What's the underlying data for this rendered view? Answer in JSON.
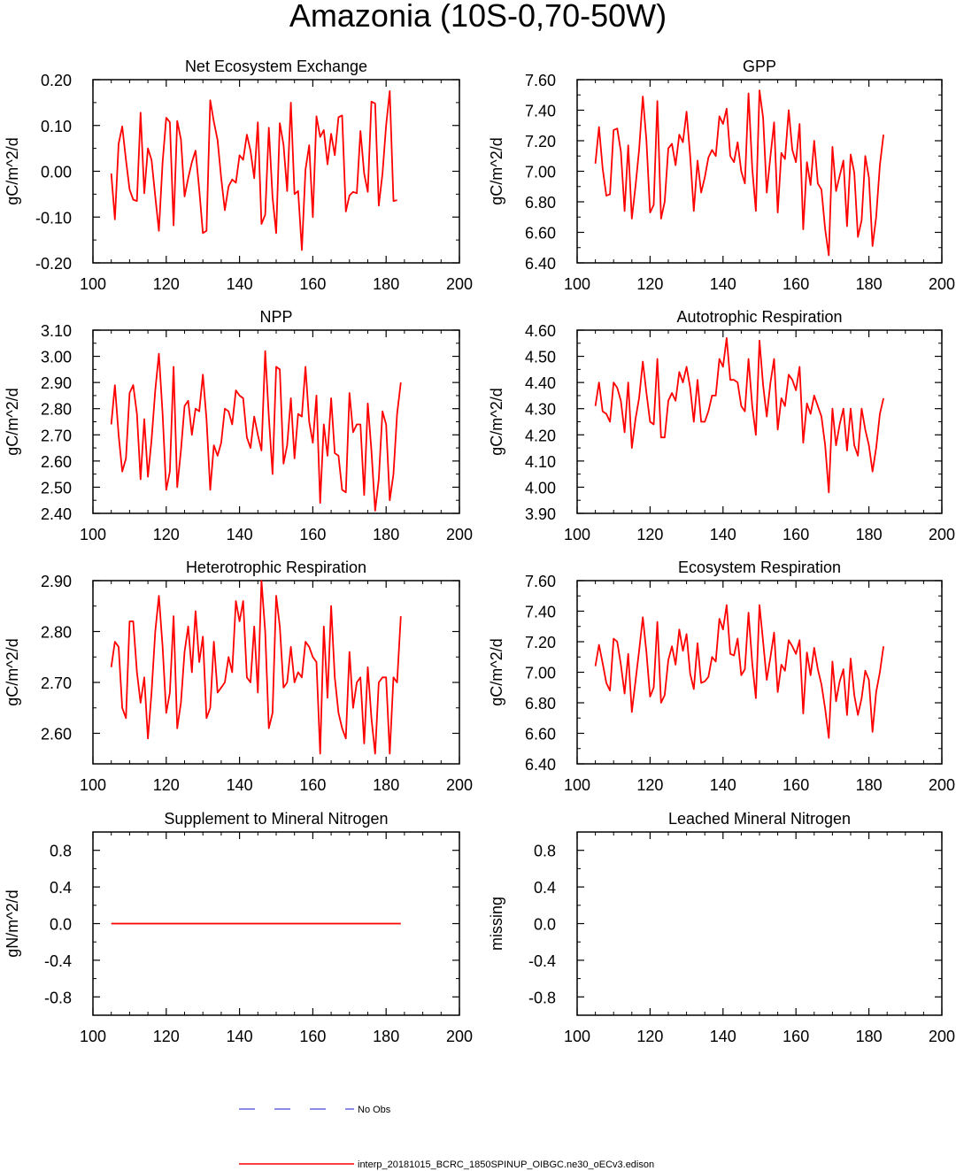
{
  "title": "Amazonia (10S-0,70-50W)",
  "colors": {
    "model": "#ff0000",
    "obs": "#6666dd",
    "axes": "#000000"
  },
  "legend": {
    "obs_label": "No Obs",
    "model_label": "interp_20181015_BCRC_1850SPINUP_OIBGC.ne30_oECv3.edison"
  },
  "chart_data": [
    {
      "id": "nee",
      "type": "line",
      "title": "Net Ecosystem Exchange",
      "ylabel": "gC/m^2/d",
      "xlim": [
        100,
        200
      ],
      "ylim": [
        -0.2,
        0.2
      ],
      "xticks": [
        100,
        120,
        140,
        160,
        180,
        200
      ],
      "xtick_labels": [
        "100",
        "120",
        "140",
        "160",
        "180",
        "200"
      ],
      "yticks": [
        -0.2,
        -0.1,
        0.0,
        0.1,
        0.2
      ],
      "ytick_labels": [
        "-0.20",
        "-0.10",
        "0.00",
        "0.10",
        "0.20"
      ],
      "x_start": 105,
      "values": [
        -0.005,
        -0.105,
        0.06,
        0.098,
        0.025,
        -0.04,
        -0.062,
        -0.065,
        0.128,
        -0.048,
        0.05,
        0.025,
        -0.055,
        -0.13,
        0.02,
        0.117,
        0.107,
        -0.118,
        0.11,
        0.07,
        -0.055,
        -0.015,
        0.02,
        0.045,
        -0.04,
        -0.135,
        -0.13,
        0.155,
        0.108,
        0.068,
        -0.015,
        -0.085,
        -0.033,
        -0.018,
        -0.025,
        0.035,
        0.025,
        0.08,
        0.045,
        -0.015,
        0.107,
        -0.115,
        -0.095,
        0.095,
        -0.057,
        -0.135,
        0.105,
        0.058,
        -0.043,
        0.15,
        -0.05,
        -0.043,
        -0.172,
        0.003,
        0.057,
        -0.1,
        0.12,
        0.075,
        0.09,
        0.015,
        0.082,
        0.035,
        0.118,
        0.122,
        -0.088,
        -0.053,
        -0.045,
        -0.048,
        0.088,
        -0.005,
        -0.045,
        0.152,
        0.148,
        -0.075,
        -0.005,
        0.1,
        0.175,
        -0.065,
        -0.063
      ]
    },
    {
      "id": "gpp",
      "type": "line",
      "title": "GPP",
      "ylabel": "gC/m^2/d",
      "xlim": [
        100,
        200
      ],
      "ylim": [
        6.4,
        7.6
      ],
      "xticks": [
        100,
        120,
        140,
        160,
        180,
        200
      ],
      "xtick_labels": [
        "100",
        "120",
        "140",
        "160",
        "180",
        "200"
      ],
      "yticks": [
        6.4,
        6.6,
        6.8,
        7.0,
        7.2,
        7.4,
        7.6
      ],
      "ytick_labels": [
        "6.40",
        "6.60",
        "6.80",
        "7.00",
        "7.20",
        "7.40",
        "7.60"
      ],
      "x_start": 105,
      "values": [
        7.05,
        7.29,
        7.02,
        6.84,
        6.85,
        7.27,
        7.28,
        7.13,
        6.74,
        7.17,
        6.69,
        6.9,
        7.14,
        7.49,
        7.2,
        6.73,
        6.78,
        7.46,
        6.69,
        6.8,
        7.15,
        7.18,
        7.04,
        7.24,
        7.19,
        7.39,
        7.1,
        6.74,
        7.07,
        6.86,
        6.96,
        7.09,
        7.14,
        7.1,
        7.36,
        7.31,
        7.41,
        7.1,
        7.06,
        7.19,
        7.0,
        6.92,
        7.51,
        7.02,
        6.74,
        7.53,
        7.35,
        6.86,
        7.1,
        7.32,
        6.73,
        7.12,
        7.08,
        7.4,
        7.14,
        7.06,
        7.31,
        6.62,
        7.06,
        6.91,
        7.2,
        6.92,
        6.88,
        6.62,
        6.45,
        7.16,
        6.87,
        6.97,
        7.07,
        6.64,
        7.11,
        6.99,
        6.57,
        6.68,
        7.1,
        6.96,
        6.51,
        6.7,
        7.04,
        7.24
      ]
    },
    {
      "id": "npp",
      "type": "line",
      "title": "NPP",
      "ylabel": "gC/m^2/d",
      "xlim": [
        100,
        200
      ],
      "ylim": [
        2.4,
        3.1
      ],
      "xticks": [
        100,
        120,
        140,
        160,
        180,
        200
      ],
      "xtick_labels": [
        "100",
        "120",
        "140",
        "160",
        "180",
        "200"
      ],
      "yticks": [
        2.4,
        2.5,
        2.6,
        2.7,
        2.8,
        2.9,
        3.0,
        3.1
      ],
      "ytick_labels": [
        "2.40",
        "2.50",
        "2.60",
        "2.70",
        "2.80",
        "2.90",
        "3.00",
        "3.10"
      ],
      "x_start": 105,
      "values": [
        2.74,
        2.89,
        2.7,
        2.56,
        2.61,
        2.86,
        2.89,
        2.78,
        2.53,
        2.76,
        2.54,
        2.68,
        2.87,
        3.01,
        2.78,
        2.49,
        2.56,
        2.96,
        2.5,
        2.64,
        2.81,
        2.83,
        2.7,
        2.8,
        2.79,
        2.93,
        2.76,
        2.49,
        2.66,
        2.62,
        2.67,
        2.8,
        2.79,
        2.74,
        2.87,
        2.85,
        2.84,
        2.69,
        2.65,
        2.77,
        2.7,
        2.64,
        3.02,
        2.77,
        2.55,
        2.96,
        2.95,
        2.59,
        2.66,
        2.84,
        2.61,
        2.78,
        2.77,
        2.96,
        2.75,
        2.67,
        2.85,
        2.44,
        2.74,
        2.62,
        2.84,
        2.63,
        2.62,
        2.49,
        2.48,
        2.86,
        2.71,
        2.74,
        2.74,
        2.47,
        2.82,
        2.64,
        2.41,
        2.53,
        2.79,
        2.74,
        2.45,
        2.55,
        2.78,
        2.9
      ]
    },
    {
      "id": "ar",
      "type": "line",
      "title": "Autotrophic Respiration",
      "ylabel": "gC/m^2/d",
      "xlim": [
        100,
        200
      ],
      "ylim": [
        3.9,
        4.6
      ],
      "xticks": [
        100,
        120,
        140,
        160,
        180,
        200
      ],
      "xtick_labels": [
        "100",
        "120",
        "140",
        "160",
        "180",
        "200"
      ],
      "yticks": [
        3.9,
        4.0,
        4.1,
        4.2,
        4.3,
        4.4,
        4.5,
        4.6
      ],
      "ytick_labels": [
        "3.90",
        "4.00",
        "4.10",
        "4.20",
        "4.30",
        "4.40",
        "4.50",
        "4.60"
      ],
      "x_start": 105,
      "values": [
        4.31,
        4.4,
        4.29,
        4.28,
        4.25,
        4.4,
        4.38,
        4.33,
        4.21,
        4.4,
        4.15,
        4.26,
        4.34,
        4.48,
        4.36,
        4.25,
        4.24,
        4.49,
        4.19,
        4.19,
        4.33,
        4.36,
        4.33,
        4.44,
        4.4,
        4.46,
        4.38,
        4.25,
        4.41,
        4.25,
        4.25,
        4.29,
        4.35,
        4.35,
        4.49,
        4.46,
        4.57,
        4.41,
        4.41,
        4.4,
        4.31,
        4.29,
        4.49,
        4.31,
        4.2,
        4.56,
        4.39,
        4.27,
        4.4,
        4.49,
        4.22,
        4.34,
        4.31,
        4.43,
        4.41,
        4.37,
        4.46,
        4.17,
        4.32,
        4.28,
        4.35,
        4.31,
        4.27,
        4.16,
        3.98,
        4.3,
        4.16,
        4.24,
        4.3,
        4.14,
        4.3,
        4.16,
        4.12,
        4.3,
        4.22,
        4.16,
        4.06,
        4.15,
        4.28,
        4.34
      ]
    },
    {
      "id": "hr",
      "type": "line",
      "title": "Heterotrophic Respiration",
      "ylabel": "gC/m^2/d",
      "xlim": [
        100,
        200
      ],
      "ylim": [
        2.54,
        2.9
      ],
      "xticks": [
        100,
        120,
        140,
        160,
        180,
        200
      ],
      "xtick_labels": [
        "100",
        "120",
        "140",
        "160",
        "180",
        "200"
      ],
      "yticks": [
        2.6,
        2.7,
        2.8,
        2.9
      ],
      "ytick_labels": [
        "2.60",
        "2.70",
        "2.80",
        "2.90"
      ],
      "x_start": 105,
      "values": [
        2.73,
        2.78,
        2.77,
        2.65,
        2.63,
        2.82,
        2.82,
        2.72,
        2.66,
        2.71,
        2.59,
        2.68,
        2.8,
        2.87,
        2.77,
        2.64,
        2.68,
        2.83,
        2.61,
        2.66,
        2.76,
        2.81,
        2.72,
        2.84,
        2.74,
        2.79,
        2.63,
        2.65,
        2.78,
        2.68,
        2.69,
        2.7,
        2.75,
        2.72,
        2.86,
        2.82,
        2.86,
        2.71,
        2.7,
        2.81,
        2.68,
        2.9,
        2.8,
        2.61,
        2.64,
        2.87,
        2.81,
        2.69,
        2.7,
        2.77,
        2.7,
        2.72,
        2.71,
        2.78,
        2.77,
        2.75,
        2.74,
        2.56,
        2.81,
        2.67,
        2.85,
        2.71,
        2.64,
        2.61,
        2.59,
        2.76,
        2.65,
        2.7,
        2.71,
        2.58,
        2.73,
        2.63,
        2.56,
        2.7,
        2.71,
        2.71,
        2.56,
        2.71,
        2.7,
        2.83
      ]
    },
    {
      "id": "er",
      "type": "line",
      "title": "Ecosystem Respiration",
      "ylabel": "gC/m^2/d",
      "xlim": [
        100,
        200
      ],
      "ylim": [
        6.4,
        7.6
      ],
      "xticks": [
        100,
        120,
        140,
        160,
        180,
        200
      ],
      "xtick_labels": [
        "100",
        "120",
        "140",
        "160",
        "180",
        "200"
      ],
      "yticks": [
        6.4,
        6.6,
        6.8,
        7.0,
        7.2,
        7.4,
        7.6
      ],
      "ytick_labels": [
        "6.40",
        "6.60",
        "6.80",
        "7.00",
        "7.20",
        "7.40",
        "7.60"
      ],
      "x_start": 105,
      "values": [
        7.04,
        7.18,
        7.06,
        6.93,
        6.88,
        7.22,
        7.2,
        7.05,
        6.86,
        7.12,
        6.74,
        6.94,
        7.14,
        7.36,
        7.13,
        6.84,
        6.9,
        7.33,
        6.8,
        6.85,
        7.08,
        7.17,
        7.05,
        7.28,
        7.14,
        7.25,
        6.99,
        6.89,
        7.19,
        6.93,
        6.94,
        6.97,
        7.1,
        7.07,
        7.35,
        7.28,
        7.44,
        7.12,
        7.11,
        7.22,
        6.98,
        7.02,
        7.39,
        7.06,
        6.83,
        7.44,
        7.2,
        6.95,
        7.1,
        7.26,
        6.87,
        7.05,
        7.01,
        7.21,
        7.17,
        7.12,
        7.21,
        6.73,
        7.13,
        6.98,
        7.16,
        7.02,
        6.92,
        6.76,
        6.57,
        7.07,
        6.81,
        6.94,
        7.02,
        6.72,
        7.09,
        6.85,
        6.72,
        6.83,
        7.01,
        6.95,
        6.61,
        6.87,
        7.0,
        7.17
      ]
    },
    {
      "id": "supn",
      "type": "line",
      "title": "Supplement to Mineral Nitrogen",
      "ylabel": "gN/m^2/d",
      "xlim": [
        100,
        200
      ],
      "ylim": [
        -1.0,
        1.0
      ],
      "xticks": [
        100,
        120,
        140,
        160,
        180,
        200
      ],
      "xtick_labels": [
        "100",
        "120",
        "140",
        "160",
        "180",
        "200"
      ],
      "yticks": [
        -0.8,
        -0.4,
        0.0,
        0.4,
        0.8
      ],
      "ytick_labels": [
        "-0.8",
        "-0.4",
        "0.0",
        "0.4",
        "0.8"
      ],
      "x": [
        105,
        184
      ],
      "values": [
        0.0,
        0.0
      ]
    },
    {
      "id": "leachn",
      "type": "line",
      "title": "Leached Mineral Nitrogen",
      "ylabel": "missing",
      "xlim": [
        100,
        200
      ],
      "ylim": [
        -1.0,
        1.0
      ],
      "xticks": [
        100,
        120,
        140,
        160,
        180,
        200
      ],
      "xtick_labels": [
        "100",
        "120",
        "140",
        "160",
        "180",
        "200"
      ],
      "yticks": [
        -0.8,
        -0.4,
        0.0,
        0.4,
        0.8
      ],
      "ytick_labels": [
        "-0.8",
        "-0.4",
        "0.0",
        "0.4",
        "0.8"
      ],
      "values": []
    }
  ]
}
